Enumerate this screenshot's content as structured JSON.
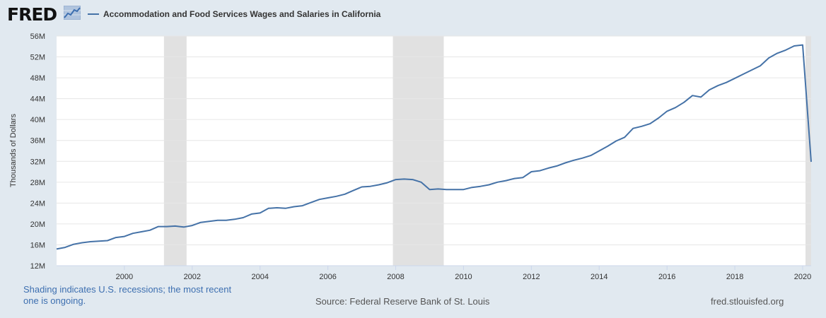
{
  "header": {
    "logo_text": "FRED",
    "legend_label": "Accommodation and Food Services Wages and Salaries in California"
  },
  "footer": {
    "recession_note": "Shading indicates U.S. recessions; the most recent one is ongoing.",
    "source": "Source: Federal Reserve Bank of St. Louis",
    "url": "fred.stlouisfed.org"
  },
  "colors": {
    "background": "#e1e9f0",
    "plot_background": "#ffffff",
    "series_line": "#4572a7",
    "recession_shade": "#e1e1e1",
    "gridline": "#e6e6e6"
  },
  "icons": {
    "logo_graph": "fred-line-graph-icon"
  },
  "chart_data": {
    "type": "line",
    "title": "Accommodation and Food Services Wages and Salaries in California",
    "ylabel": "Thousands of Dollars",
    "xlabel": "",
    "grid": true,
    "legend_position": "top-left",
    "xlim": [
      "1998-01",
      "2020-04"
    ],
    "ylim": [
      12,
      56
    ],
    "y_ticks": [
      12,
      16,
      20,
      24,
      28,
      32,
      36,
      40,
      44,
      48,
      52,
      56
    ],
    "y_tick_labels": [
      "12M",
      "16M",
      "20M",
      "24M",
      "28M",
      "32M",
      "36M",
      "40M",
      "44M",
      "48M",
      "52M",
      "56M"
    ],
    "x_ticks": [
      "2000-01",
      "2002-01",
      "2004-01",
      "2006-01",
      "2008-01",
      "2010-01",
      "2012-01",
      "2014-01",
      "2016-01",
      "2018-01",
      "2020-01"
    ],
    "x_tick_labels": [
      "2000",
      "2002",
      "2004",
      "2006",
      "2008",
      "2010",
      "2012",
      "2014",
      "2016",
      "2018",
      "2020"
    ],
    "recessions": [
      {
        "start": "2001-03",
        "end": "2001-11"
      },
      {
        "start": "2007-12",
        "end": "2009-06"
      },
      {
        "start": "2020-02",
        "end": "2020-04"
      }
    ],
    "series": [
      {
        "name": "Accommodation and Food Services Wages and Salaries in California",
        "x": [
          "1998-01",
          "1998-04",
          "1998-07",
          "1998-10",
          "1999-01",
          "1999-04",
          "1999-07",
          "1999-10",
          "2000-01",
          "2000-04",
          "2000-07",
          "2000-10",
          "2001-01",
          "2001-04",
          "2001-07",
          "2001-10",
          "2002-01",
          "2002-04",
          "2002-07",
          "2002-10",
          "2003-01",
          "2003-04",
          "2003-07",
          "2003-10",
          "2004-01",
          "2004-04",
          "2004-07",
          "2004-10",
          "2005-01",
          "2005-04",
          "2005-07",
          "2005-10",
          "2006-01",
          "2006-04",
          "2006-07",
          "2006-10",
          "2007-01",
          "2007-04",
          "2007-07",
          "2007-10",
          "2008-01",
          "2008-04",
          "2008-07",
          "2008-10",
          "2009-01",
          "2009-04",
          "2009-07",
          "2009-10",
          "2010-01",
          "2010-04",
          "2010-07",
          "2010-10",
          "2011-01",
          "2011-04",
          "2011-07",
          "2011-10",
          "2012-01",
          "2012-04",
          "2012-07",
          "2012-10",
          "2013-01",
          "2013-04",
          "2013-07",
          "2013-10",
          "2014-01",
          "2014-04",
          "2014-07",
          "2014-10",
          "2015-01",
          "2015-04",
          "2015-07",
          "2015-10",
          "2016-01",
          "2016-04",
          "2016-07",
          "2016-10",
          "2017-01",
          "2017-04",
          "2017-07",
          "2017-10",
          "2018-01",
          "2018-04",
          "2018-07",
          "2018-10",
          "2019-01",
          "2019-04",
          "2019-07",
          "2019-10",
          "2020-01",
          "2020-04"
        ],
        "values": [
          15.2,
          15.5,
          16.1,
          16.4,
          16.6,
          16.7,
          16.8,
          17.4,
          17.6,
          18.2,
          18.5,
          18.8,
          19.5,
          19.5,
          19.6,
          19.4,
          19.7,
          20.3,
          20.5,
          20.7,
          20.7,
          20.9,
          21.2,
          21.9,
          22.1,
          23.0,
          23.1,
          23.0,
          23.3,
          23.5,
          24.1,
          24.7,
          25.0,
          25.3,
          25.7,
          26.4,
          27.1,
          27.2,
          27.5,
          27.9,
          28.5,
          28.6,
          28.5,
          28.0,
          26.6,
          26.7,
          26.6,
          26.6,
          26.6,
          27.0,
          27.2,
          27.5,
          28.0,
          28.3,
          28.7,
          28.9,
          30.0,
          30.2,
          30.7,
          31.1,
          31.7,
          32.2,
          32.6,
          33.1,
          34.0,
          34.9,
          35.9,
          36.6,
          38.3,
          38.7,
          39.2,
          40.3,
          41.6,
          42.3,
          43.3,
          44.6,
          44.3,
          45.7,
          46.5,
          47.1,
          47.9,
          48.7,
          49.5,
          50.3,
          51.8,
          52.7,
          53.3,
          54.1,
          54.3,
          31.9
        ]
      }
    ]
  }
}
